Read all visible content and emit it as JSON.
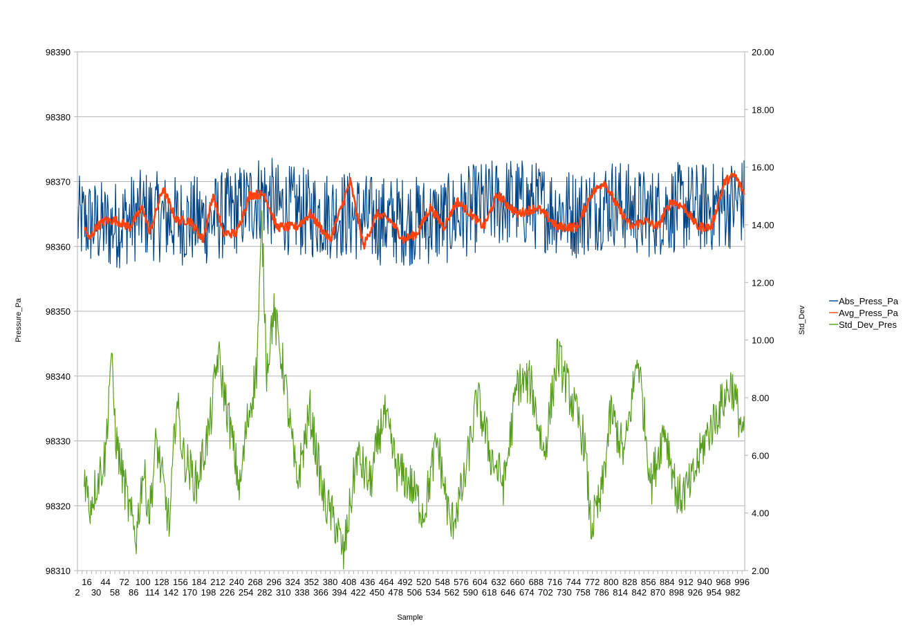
{
  "chart_data": {
    "type": "line",
    "title": "",
    "xlabel": "Sample",
    "ylabel": "Pressure_Pa",
    "y2label": "Std_Dev",
    "ylim": [
      98310,
      98390
    ],
    "y2lim": [
      2.0,
      20.0
    ],
    "y_ticks": [
      "98310",
      "98320",
      "98330",
      "98340",
      "98350",
      "98360",
      "98370",
      "98380",
      "98390"
    ],
    "y2_ticks": [
      "2.00",
      "4.00",
      "6.00",
      "8.00",
      "10.00",
      "12.00",
      "14.00",
      "16.00",
      "18.00",
      "20.00"
    ],
    "x_range": [
      2,
      1000
    ],
    "x_ticks_row1": [
      16,
      44,
      72,
      100,
      128,
      156,
      184,
      212,
      240,
      268,
      296,
      324,
      352,
      380,
      408,
      436,
      464,
      492,
      520,
      548,
      576,
      604,
      632,
      660,
      688,
      716,
      744,
      772,
      800,
      828,
      856,
      884,
      912,
      940,
      968,
      996
    ],
    "x_ticks_row2": [
      2,
      30,
      58,
      86,
      114,
      142,
      170,
      198,
      226,
      254,
      282,
      310,
      338,
      366,
      394,
      422,
      450,
      478,
      506,
      534,
      562,
      590,
      618,
      646,
      674,
      702,
      730,
      758,
      786,
      814,
      842,
      870,
      898,
      926,
      954,
      982
    ],
    "grid": true,
    "legend_position": "right",
    "series": [
      {
        "name": "Abs_Press_Pa",
        "axis": "left",
        "color": "#004586",
        "style": "noisy",
        "x": [
          2,
          50,
          100,
          150,
          200,
          250,
          280,
          300,
          350,
          400,
          450,
          500,
          550,
          600,
          650,
          700,
          750,
          800,
          850,
          900,
          950,
          1000
        ],
        "y": [
          98364,
          98363,
          98365,
          98364,
          98364,
          98366,
          98368,
          98366,
          98365,
          98365,
          98364,
          98364,
          98364,
          98366,
          98367,
          98366,
          98365,
          98367,
          98365,
          98366,
          98366,
          98367
        ],
        "amplitude": 7
      },
      {
        "name": "Avg_Press_Pa",
        "axis": "left",
        "color": "#ff420e",
        "style": "smooth",
        "x": [
          12,
          20,
          30,
          44,
          60,
          80,
          100,
          110,
          130,
          150,
          170,
          190,
          205,
          220,
          240,
          260,
          282,
          300,
          330,
          350,
          380,
          400,
          410,
          430,
          450,
          470,
          490,
          510,
          530,
          550,
          570,
          590,
          610,
          630,
          660,
          690,
          720,
          750,
          770,
          790,
          810,
          830,
          850,
          870,
          890,
          910,
          930,
          950,
          970,
          985,
          1000
        ],
        "y": [
          98363,
          98361,
          98363,
          98364,
          98364,
          98363,
          98366,
          98362,
          98369,
          98364,
          98364,
          98361,
          98368,
          98362,
          98362,
          98368,
          98368,
          98363,
          98363,
          98365,
          98361,
          98367,
          98370,
          98360,
          98365,
          98364,
          98361,
          98362,
          98366,
          98363,
          98367,
          98365,
          98363,
          98368,
          98365,
          98366,
          98363,
          98363,
          98368,
          98370,
          98366,
          98363,
          98364,
          98363,
          98367,
          98366,
          98363,
          98363,
          98370,
          98371,
          98368
        ]
      },
      {
        "name": "Std_Dev_Pres",
        "axis": "right",
        "color": "#579d1c",
        "style": "jagged",
        "x": [
          12,
          20,
          30,
          44,
          52,
          60,
          80,
          90,
          100,
          110,
          120,
          140,
          150,
          160,
          180,
          200,
          212,
          230,
          245,
          255,
          270,
          278,
          285,
          295,
          310,
          330,
          350,
          370,
          390,
          400,
          420,
          440,
          460,
          480,
          500,
          520,
          540,
          560,
          580,
          600,
          620,
          640,
          660,
          680,
          700,
          720,
          740,
          760,
          770,
          785,
          800,
          820,
          840,
          860,
          880,
          900,
          920,
          940,
          960,
          980,
          1000
        ],
        "y": [
          5.5,
          4.2,
          5.0,
          6.0,
          9.5,
          6.5,
          4.0,
          3.2,
          5.5,
          4.0,
          6.5,
          3.5,
          8.0,
          6.0,
          5.0,
          7.0,
          9.5,
          7.0,
          4.8,
          7.0,
          9.0,
          14.0,
          9.0,
          11.0,
          9.0,
          5.0,
          7.5,
          4.5,
          3.5,
          2.5,
          6.0,
          5.0,
          7.5,
          5.5,
          5.0,
          4.0,
          6.5,
          3.5,
          5.0,
          8.0,
          6.0,
          5.0,
          8.5,
          8.5,
          6.0,
          9.5,
          8.0,
          6.5,
          3.5,
          4.5,
          7.5,
          6.0,
          9.5,
          5.0,
          7.0,
          4.5,
          5.0,
          6.5,
          7.5,
          8.5,
          6.5
        ]
      }
    ]
  }
}
